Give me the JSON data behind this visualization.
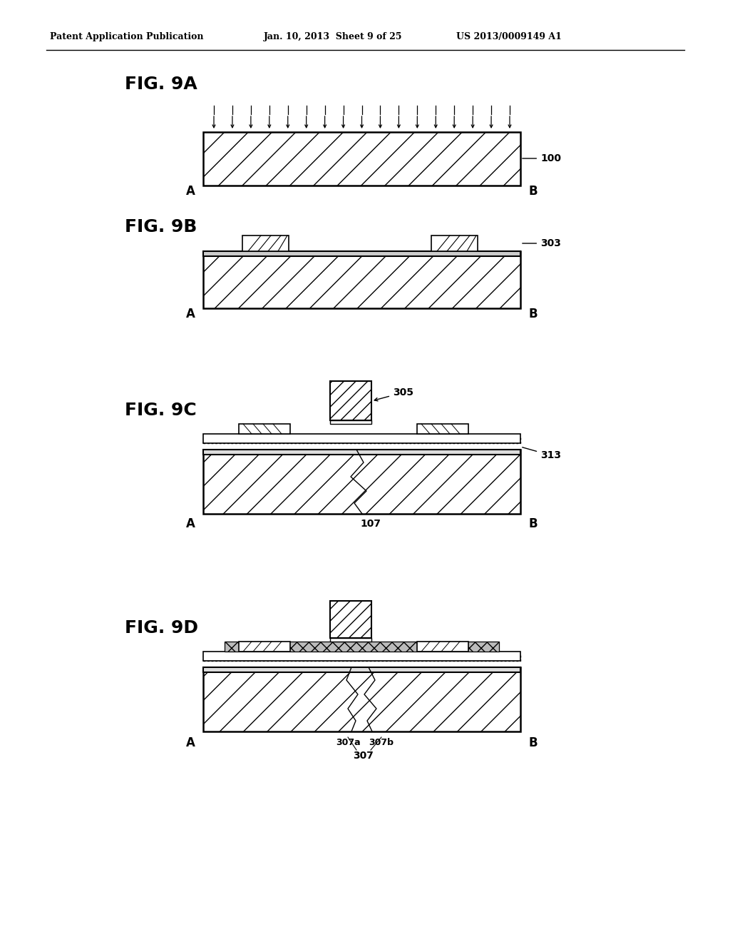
{
  "bg_color": "#ffffff",
  "header_left": "Patent Application Publication",
  "header_mid": "Jan. 10, 2013  Sheet 9 of 25",
  "header_right": "US 2013/0009149 A1",
  "fig_titles": [
    "FIG. 9A",
    "FIG. 9B",
    "FIG. 9C",
    "FIG. 9D"
  ],
  "label_100": "100",
  "label_303": "303",
  "label_305": "305",
  "label_313": "313",
  "label_107": "107",
  "label_307a": "307a",
  "label_307b": "307b",
  "label_307": "307"
}
